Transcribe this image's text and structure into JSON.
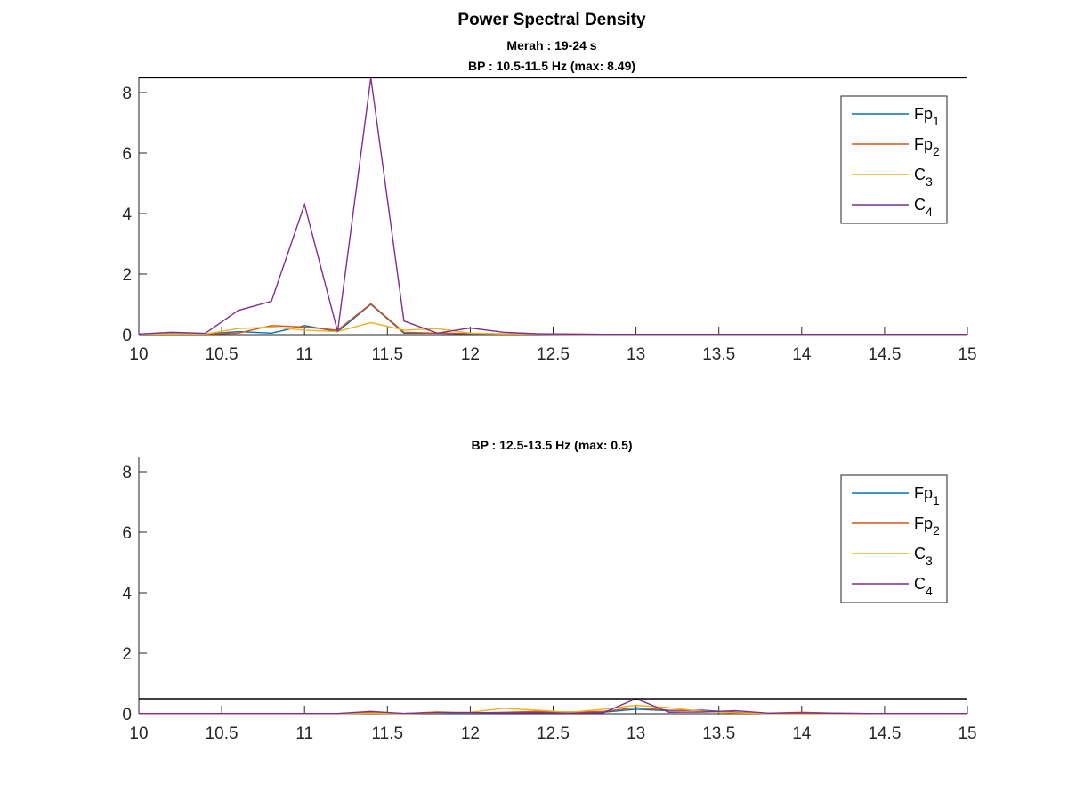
{
  "figure_title": "Power Spectral Density",
  "chart_data": [
    {
      "type": "line",
      "title": "Merah : 19-24 s",
      "subtitle": "BP : 10.5-11.5 Hz (max: 8.49)",
      "xlabel": "",
      "ylabel": "",
      "xlim": [
        10,
        15
      ],
      "ylim": [
        0,
        8.5
      ],
      "xticks": [
        "10",
        "10.5",
        "11",
        "11.5",
        "12",
        "12.5",
        "13",
        "13.5",
        "14",
        "14.5",
        "15"
      ],
      "yticks": [
        "0",
        "2",
        "4",
        "6",
        "8"
      ],
      "reference_line": 8.49,
      "grid": false,
      "legend": "top-right",
      "x": [
        10,
        10.2,
        10.4,
        10.6,
        10.8,
        11.0,
        11.2,
        11.4,
        11.6,
        11.8,
        12.0,
        12.2,
        12.4,
        12.6,
        12.8,
        13.0,
        13.2,
        13.4,
        13.6,
        13.8,
        14.0,
        14.2,
        14.4,
        14.6,
        14.8,
        15.0
      ],
      "series": [
        {
          "name": "Fp1",
          "label_main": "Fp",
          "label_sub": "1",
          "color": "#0072BD",
          "values": [
            0.02,
            0.03,
            0.02,
            0.1,
            0.05,
            0.3,
            0.1,
            1.0,
            0.05,
            0.05,
            0.03,
            0.02,
            0.02,
            0.01,
            0.01,
            0.01,
            0.01,
            0.01,
            0.01,
            0.01,
            0.01,
            0.01,
            0.01,
            0.01,
            0.01,
            0.01
          ]
        },
        {
          "name": "Fp2",
          "label_main": "Fp",
          "label_sub": "2",
          "color": "#D95319",
          "values": [
            0.02,
            0.03,
            0.02,
            0.05,
            0.3,
            0.25,
            0.15,
            1.02,
            0.08,
            0.05,
            0.04,
            0.02,
            0.02,
            0.01,
            0.01,
            0.01,
            0.01,
            0.01,
            0.01,
            0.01,
            0.01,
            0.01,
            0.01,
            0.01,
            0.01,
            0.01
          ]
        },
        {
          "name": "C3",
          "label_main": "C",
          "label_sub": "3",
          "color": "#EDB120",
          "values": [
            0.02,
            0.02,
            0.02,
            0.2,
            0.25,
            0.15,
            0.1,
            0.4,
            0.15,
            0.2,
            0.05,
            0.03,
            0.02,
            0.02,
            0.01,
            0.01,
            0.01,
            0.01,
            0.01,
            0.01,
            0.01,
            0.01,
            0.01,
            0.01,
            0.01,
            0.01
          ]
        },
        {
          "name": "C4",
          "label_main": "C",
          "label_sub": "4",
          "color": "#7E2F8E",
          "values": [
            0.02,
            0.08,
            0.04,
            0.8,
            1.1,
            4.3,
            0.1,
            8.49,
            0.45,
            0.05,
            0.22,
            0.08,
            0.03,
            0.02,
            0.01,
            0.01,
            0.01,
            0.01,
            0.01,
            0.01,
            0.01,
            0.01,
            0.01,
            0.01,
            0.01,
            0.01
          ]
        }
      ]
    },
    {
      "type": "line",
      "title": "",
      "subtitle": "BP : 12.5-13.5 Hz (max: 0.5)",
      "xlabel": "",
      "ylabel": "",
      "xlim": [
        10,
        15
      ],
      "ylim": [
        0,
        8.5
      ],
      "xticks": [
        "10",
        "10.5",
        "11",
        "11.5",
        "12",
        "12.5",
        "13",
        "13.5",
        "14",
        "14.5",
        "15"
      ],
      "yticks": [
        "0",
        "2",
        "4",
        "6",
        "8"
      ],
      "reference_line": 0.5,
      "grid": false,
      "legend": "top-right",
      "x": [
        10,
        10.2,
        10.4,
        10.6,
        10.8,
        11.0,
        11.2,
        11.4,
        11.6,
        11.8,
        12.0,
        12.2,
        12.4,
        12.6,
        12.8,
        13.0,
        13.2,
        13.4,
        13.6,
        13.8,
        14.0,
        14.2,
        14.4,
        14.6,
        14.8,
        15.0
      ],
      "series": [
        {
          "name": "Fp1",
          "label_main": "Fp",
          "label_sub": "1",
          "color": "#0072BD",
          "values": [
            0.01,
            0.01,
            0.01,
            0.01,
            0.01,
            0.01,
            0.01,
            0.03,
            0.01,
            0.03,
            0.02,
            0.03,
            0.05,
            0.04,
            0.05,
            0.15,
            0.1,
            0.12,
            0.05,
            0.01,
            0.02,
            0.01,
            0.01,
            0.01,
            0.01,
            0.01
          ]
        },
        {
          "name": "Fp2",
          "label_main": "Fp",
          "label_sub": "2",
          "color": "#D95319",
          "values": [
            0.01,
            0.01,
            0.01,
            0.01,
            0.01,
            0.01,
            0.01,
            0.04,
            0.01,
            0.06,
            0.03,
            0.05,
            0.08,
            0.06,
            0.08,
            0.2,
            0.12,
            0.1,
            0.04,
            0.02,
            0.05,
            0.02,
            0.01,
            0.01,
            0.01,
            0.01
          ]
        },
        {
          "name": "C3",
          "label_main": "C",
          "label_sub": "3",
          "color": "#EDB120",
          "values": [
            0.01,
            0.01,
            0.01,
            0.01,
            0.01,
            0.01,
            0.01,
            0.02,
            0.01,
            0.03,
            0.05,
            0.18,
            0.12,
            0.05,
            0.15,
            0.28,
            0.2,
            0.08,
            0.03,
            0.01,
            0.01,
            0.01,
            0.01,
            0.01,
            0.01,
            0.01
          ]
        },
        {
          "name": "C4",
          "label_main": "C",
          "label_sub": "4",
          "color": "#7E2F8E",
          "values": [
            0.01,
            0.01,
            0.01,
            0.01,
            0.01,
            0.01,
            0.01,
            0.08,
            0.01,
            0.04,
            0.04,
            0.03,
            0.03,
            0.02,
            0.03,
            0.5,
            0.05,
            0.06,
            0.1,
            0.02,
            0.03,
            0.02,
            0.01,
            0.01,
            0.01,
            0.01
          ]
        }
      ]
    }
  ]
}
